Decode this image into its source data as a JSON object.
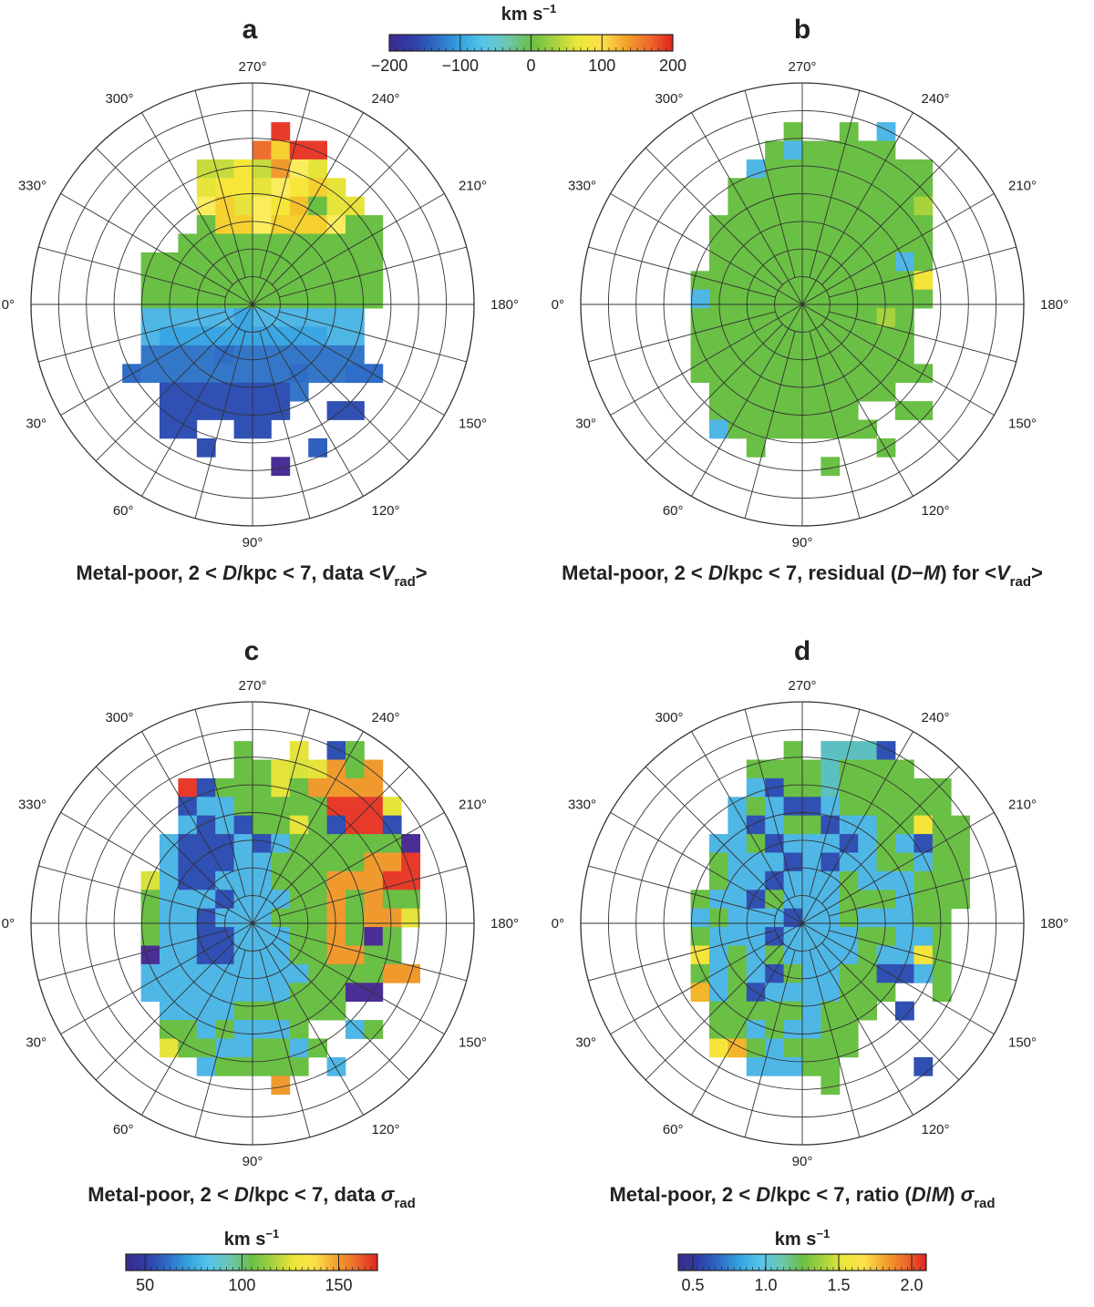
{
  "chart_data": [
    {
      "type": "heatmap",
      "id": "a",
      "panel_label": "a",
      "caption": {
        "prefix": "Metal-poor, 2 < ",
        "D": "D",
        "mid": "/kpc < 7, data <",
        "V": "V",
        "sub": "rad",
        "suffix": ">"
      },
      "angle_labels": [
        "0°",
        "30°",
        "60°",
        "90°",
        "120°",
        "150°",
        "180°",
        "210°",
        "240°",
        "270°",
        "300°",
        "330°"
      ],
      "colorbar": "cb_vrad",
      "grid_columns": 18,
      "row_start": 8,
      "rows": [
        "..........R.......",
        ".........AHRR.....",
        "......MMDMOFE.....",
        "......EDDEFDHE....",
        "......FHEFDIGEE...",
        "......GHHFHHHFGG..",
        ".....GGGGGGGGGGG..",
        "...GGGGGGGGGGGGG..",
        "...GGGGGGGGGGGGG..",
        "...GGGGGGGGGGGGG..",
        "...JJJJJKJJJJJJ...",
        "...JKKKKKKKKKJJ...",
        "...NNNNPNNNNNNN...",
        "..PNNNNNNNNPNNPP..",
        "....QQQQQQQN......",
        "....QQQQQQQ..QQ...",
        "....QQ..QQ........",
        "......Q.....T.....",
        "..........V......."
      ],
      "palette": {
        "R": "#e83a2a",
        "A": "#ee6f2e",
        "H": "#f5d02e",
        "M": "#c5dc3c",
        "D": "#f7e63a",
        "O": "#f09a2e",
        "F": "#fbec5e",
        "E": "#e6e33a",
        "I": "#f3c22b",
        "G": "#6abf45",
        "J": "#4fb7e6",
        "K": "#3aa6e3",
        "N": "#3477c9",
        "P": "#2f6dc8",
        "Q": "#3050b4",
        "T": "#2f5fbf",
        "V": "#4a2e96"
      }
    },
    {
      "type": "heatmap",
      "id": "b",
      "panel_label": "b",
      "caption": {
        "prefix": "Metal-poor, 2 < ",
        "D": "D",
        "mid": "/kpc < 7, residual (",
        "D2": "D",
        "minus": "−",
        "M": "M",
        "mid2": ") for <",
        "V": "V",
        "sub": "rad",
        "suffix": ">"
      },
      "angle_labels": [
        "0°",
        "30°",
        "60°",
        "90°",
        "120°",
        "150°",
        "180°",
        "210°",
        "240°",
        "270°",
        "300°",
        "330°"
      ],
      "colorbar": "cb_vrad",
      "grid_columns": 18,
      "row_start": 8,
      "rows": [
        "........G..G.K....",
        ".......GKGGGGG....",
        "......KGGGGGGGGG..",
        ".....GGGGGGGGGGG..",
        ".....GGGGGGGGGGE..",
        "....GGGGGGGGGGGG..",
        "....GGGGGGGGGGGG..",
        "....GGGGGGGGGGKG..",
        "...GGGGGGGGGGGGY..",
        "...KGGGGGGGGGGGG..",
        "...GGGGGGGGGGEG...",
        "...GGGGGGGGGGGG...",
        "...GGGGGGGGGGGG...",
        "...GGGGGGGGGGGGG..",
        "....GGGGGGGGGG....",
        "....GGGGGGGG..GG..",
        "....KGGGGGGGG.....",
        "......G......G....",
        "..........G......."
      ],
      "palette": {
        "G": "#6abf45",
        "K": "#4fb7e6",
        "E": "#a6d23e",
        "Y": "#f5e43a"
      }
    },
    {
      "type": "heatmap",
      "id": "c",
      "panel_label": "c",
      "caption": {
        "prefix": "Metal-poor, 2 < ",
        "D": "D",
        "mid": "/kpc < 7, data ",
        "sigma": "σ",
        "sub": "rad"
      },
      "angle_labels": [
        "0°",
        "30°",
        "60°",
        "90°",
        "120°",
        "150°",
        "180°",
        "210°",
        "240°",
        "270°",
        "300°",
        "330°"
      ],
      "colorbar": "cb_sigma",
      "grid_columns": 18,
      "row_start": 8,
      "rows": [
        "........G..Y.BG...",
        "........GGYEYOGO..",
        ".....RBGGGYGOOOO..",
        ".....BCCGGGGGRRRY.",
        ".....CBCBGGYGBRRB.",
        "....CBBBCBCGGGGGGV",
        "....CBBBCCGGGGGOOR",
        "...ECBBCCCGGGOOORR",
        "...GCCCBCCCGGOGOGG",
        "...GCCBCCCGGGOGOOY",
        "...GCCBBCCCGGOGVG.",
        "...VCCBBCCCGGOOGG.",
        "...CCCCCCCCCGGGGOO",
        "...CCCCCCCCGGGVV..",
        "....CCCCGGGGGG....",
        "....GGCGCCCG..CG..",
        "....YGGCCGGCG.....",
        "......CGGGGG.C....",
        "..........O......."
      ],
      "palette": {
        "G": "#6abf45",
        "Y": "#e6e33a",
        "B": "#3050b4",
        "E": "#d8e33c",
        "O": "#f09a2e",
        "R": "#e83a2a",
        "C": "#4fb7e6",
        "V": "#4a2e96"
      }
    },
    {
      "type": "heatmap",
      "id": "d",
      "panel_label": "d",
      "caption": {
        "prefix": "Metal-poor, 2 < ",
        "D": "D",
        "mid": "/kpc < 7, ratio (",
        "D2": "D",
        "slash": "/",
        "M": "M",
        "mid2": ") ",
        "sigma": "σ",
        "sub": "rad"
      },
      "angle_labels": [
        "0°",
        "30°",
        "60°",
        "90°",
        "120°",
        "150°",
        "180°",
        "210°",
        "240°",
        "270°",
        "300°",
        "330°"
      ],
      "colorbar": "cb_ratio",
      "grid_columns": 18,
      "row_start": 8,
      "rows": [
        "........G.TTTB....",
        "......GGGGTGGGG...",
        "......CBGGTGGGGGG.",
        ".....CGCBBCGGGGGG.",
        ".....CBCGGBCCGGYGG",
        "....CCGBCCCBCGCBGG",
        "....GCCCBCBCCGGCGG",
        "....GCCBCCCGCCCGGG",
        "...GCCBGCCCGGGCGGG",
        "...CGCCCBCCGCCCGG.",
        "...GCCCBCCCCGGCCG.",
        "...YCGCGCCCCGCCYG.",
        "...GCGCBGCCGGBBCG.",
        "...OCGBCCCCGGG..G.",
        "....GGGGGCGGG.B...",
        "....GGCGCCGG......",
        "....YOGCGGGG......",
        "......CCCGG....B..",
        "..........G......."
      ],
      "palette": {
        "G": "#6abf45",
        "T": "#5cc0c0",
        "B": "#3050b4",
        "C": "#4fb7e6",
        "Y": "#f5e43a",
        "O": "#f3b52b"
      }
    }
  ],
  "colorbars": {
    "cb_vrad": {
      "title": "km s",
      "sup": "−1",
      "min": -200,
      "max": 200,
      "ticks": [
        -200,
        -100,
        0,
        100,
        200
      ],
      "tick_labels": [
        "−200",
        "−100",
        "0",
        "100",
        "200"
      ]
    },
    "cb_sigma": {
      "title": "km s",
      "sup": "−1",
      "min": 40,
      "max": 170,
      "ticks": [
        50,
        100,
        150
      ],
      "tick_labels": [
        "50",
        "100",
        "150"
      ]
    },
    "cb_ratio": {
      "title": "km s",
      "sup": "−1",
      "min": 0.4,
      "max": 2.1,
      "ticks": [
        0.5,
        1.0,
        1.5,
        2.0
      ],
      "tick_labels": [
        "0.5",
        "1.0",
        "1.5",
        "2.0"
      ]
    }
  },
  "colormap": [
    "#3b2a8f",
    "#2f3fa7",
    "#2e6dc6",
    "#35a4e0",
    "#58c6ea",
    "#6cc6b0",
    "#6abf45",
    "#a6d23e",
    "#ece73a",
    "#fde04a",
    "#f3a32b",
    "#ed6a2c",
    "#e2231f"
  ]
}
